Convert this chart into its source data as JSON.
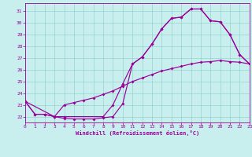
{
  "xlabel": "Windchill (Refroidissement éolien,°C)",
  "bg_color": "#c8efee",
  "line_color": "#990099",
  "xlim": [
    0,
    23
  ],
  "ylim": [
    21.5,
    31.7
  ],
  "yticks": [
    22,
    23,
    24,
    25,
    26,
    27,
    28,
    29,
    30,
    31
  ],
  "xticks": [
    0,
    1,
    2,
    3,
    4,
    5,
    6,
    7,
    8,
    9,
    10,
    11,
    12,
    13,
    14,
    15,
    16,
    17,
    18,
    19,
    20,
    21,
    22,
    23
  ],
  "curve1_x": [
    0,
    1,
    2,
    3,
    4,
    5,
    6,
    7,
    8,
    9,
    10,
    11,
    12,
    13,
    14,
    15,
    16,
    17,
    18,
    19,
    20,
    21,
    22,
    23
  ],
  "curve1_y": [
    23.3,
    22.2,
    22.2,
    22.0,
    21.85,
    21.8,
    21.8,
    21.8,
    21.9,
    22.0,
    23.1,
    26.5,
    27.1,
    28.2,
    29.5,
    30.4,
    30.5,
    31.2,
    31.2,
    30.2,
    30.1,
    29.0,
    27.3,
    26.5
  ],
  "curve2_x": [
    0,
    3,
    4,
    5,
    6,
    7,
    8,
    9,
    10,
    11,
    12,
    13,
    14,
    15,
    16,
    17,
    18,
    19,
    20,
    21,
    22,
    23
  ],
  "curve2_y": [
    23.3,
    22.0,
    23.0,
    23.2,
    23.4,
    23.6,
    23.9,
    24.2,
    24.6,
    25.0,
    25.3,
    25.6,
    25.9,
    26.1,
    26.3,
    26.5,
    26.65,
    26.7,
    26.8,
    26.7,
    26.65,
    26.5
  ],
  "curve3_x": [
    0,
    1,
    2,
    3,
    4,
    8,
    9,
    10,
    11,
    12,
    13,
    14,
    15,
    16,
    17,
    18,
    19,
    20,
    21,
    22,
    23
  ],
  "curve3_y": [
    23.3,
    22.2,
    22.2,
    22.0,
    22.0,
    22.0,
    23.0,
    24.8,
    26.5,
    27.1,
    28.2,
    29.5,
    30.4,
    30.5,
    31.2,
    31.2,
    30.2,
    30.1,
    29.0,
    27.3,
    26.5
  ]
}
